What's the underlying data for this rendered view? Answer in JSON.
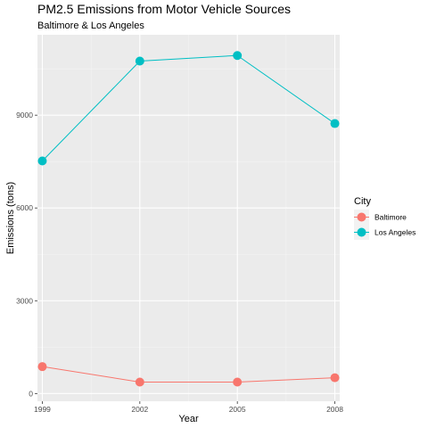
{
  "chart_data": {
    "type": "line",
    "title": "PM2.5 Emissions from Motor Vehicle Sources",
    "subtitle": "Baltimore & Los Angeles",
    "xlabel": "Year",
    "ylabel": "Emissions (tons)",
    "x": [
      1999,
      2002,
      2005,
      2008
    ],
    "x_ticks": [
      "1999",
      "2002",
      "2005",
      "2008"
    ],
    "y_ticks": [
      "0",
      "3000",
      "6000",
      "9000"
    ],
    "xlim": [
      1998.85,
      2008.15
    ],
    "ylim": [
      -250,
      11600
    ],
    "grid": true,
    "legend": {
      "title": "City",
      "position": "right"
    },
    "series": [
      {
        "name": "Baltimore",
        "color": "#F8766D",
        "values": [
          870,
          370,
          370,
          510
        ]
      },
      {
        "name": "Los Angeles",
        "color": "#00BFC4",
        "values": [
          7520,
          10750,
          10930,
          8730
        ]
      }
    ]
  }
}
